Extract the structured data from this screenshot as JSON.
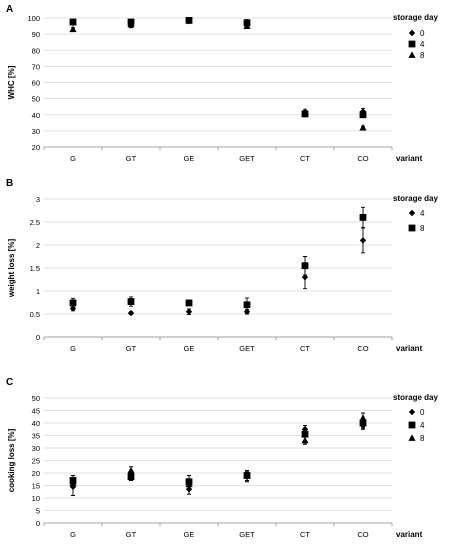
{
  "chart_data": [
    {
      "panel_label": "A",
      "type": "scatter",
      "categories": [
        "G",
        "GT",
        "GE",
        "GET",
        "CT",
        "CO"
      ],
      "xlabel": "variant",
      "ylabel": "WHC [%]",
      "ylim": [
        20,
        100
      ],
      "yticks": [
        "20",
        "30",
        "40",
        "50",
        "60",
        "70",
        "80",
        "90",
        "100"
      ],
      "grid": true,
      "legend_title": "storage day",
      "legend_position": "right",
      "series": [
        {
          "name": "0",
          "marker": "diamond",
          "values": [
            97,
            95.5,
            98,
            96.5,
            41,
            42
          ],
          "errors": [
            0.5,
            1.5,
            1,
            1.5,
            1.5,
            2
          ]
        },
        {
          "name": "4",
          "marker": "square",
          "values": [
            97.5,
            97.5,
            98.5,
            97,
            40.5,
            40
          ],
          "errors": [
            1,
            1,
            1,
            2,
            1.5,
            1.5
          ]
        },
        {
          "name": "8",
          "marker": "triangle",
          "values": [
            93,
            96,
            98.5,
            95,
            42,
            32
          ],
          "errors": [
            1,
            1,
            1,
            1.5,
            1,
            1
          ]
        }
      ]
    },
    {
      "panel_label": "B",
      "type": "scatter",
      "categories": [
        "G",
        "GT",
        "GE",
        "GET",
        "CT",
        "CO"
      ],
      "xlabel": "variant",
      "ylabel": "weight loss [%]",
      "ylim": [
        0,
        3
      ],
      "yticks": [
        "0",
        "0.5",
        "1",
        "1.5",
        "2",
        "2.5",
        "3"
      ],
      "grid": true,
      "legend_title": "storage day",
      "legend_position": "right",
      "series": [
        {
          "name": "4",
          "marker": "diamond",
          "values": [
            0.62,
            0.52,
            0.55,
            0.55,
            1.3,
            2.1
          ],
          "errors": [
            0.05,
            0.03,
            0.06,
            0.05,
            0.25,
            0.27
          ]
        },
        {
          "name": "8",
          "marker": "square",
          "values": [
            0.74,
            0.77,
            0.74,
            0.7,
            1.55,
            2.6
          ],
          "errors": [
            0.1,
            0.1,
            0.05,
            0.15,
            0.2,
            0.22
          ]
        }
      ]
    },
    {
      "panel_label": "C",
      "type": "scatter",
      "categories": [
        "G",
        "GT",
        "GE",
        "GET",
        "CT",
        "CO"
      ],
      "xlabel": "variant",
      "ylabel": "cooking loss [%]",
      "ylim": [
        0,
        50
      ],
      "yticks": [
        "0",
        "5",
        "10",
        "15",
        "20",
        "25",
        "30",
        "35",
        "40",
        "45",
        "50"
      ],
      "grid": true,
      "legend_title": "storage day",
      "legend_position": "right",
      "series": [
        {
          "name": "0",
          "marker": "diamond",
          "values": [
            14.5,
            18,
            13.5,
            18.5,
            37.5,
            39
          ],
          "errors": [
            3.5,
            1,
            2,
            2,
            1.5,
            1.5
          ]
        },
        {
          "name": "4",
          "marker": "square",
          "values": [
            17,
            18.5,
            16.5,
            19,
            35.5,
            40
          ],
          "errors": [
            2,
            1.5,
            2.5,
            2,
            2.5,
            2
          ]
        },
        {
          "name": "8",
          "marker": "triangle",
          "values": [
            16,
            21,
            15.5,
            19.5,
            33,
            42
          ],
          "errors": [
            1.5,
            1.5,
            1.5,
            1.5,
            1.5,
            2
          ]
        }
      ]
    }
  ]
}
